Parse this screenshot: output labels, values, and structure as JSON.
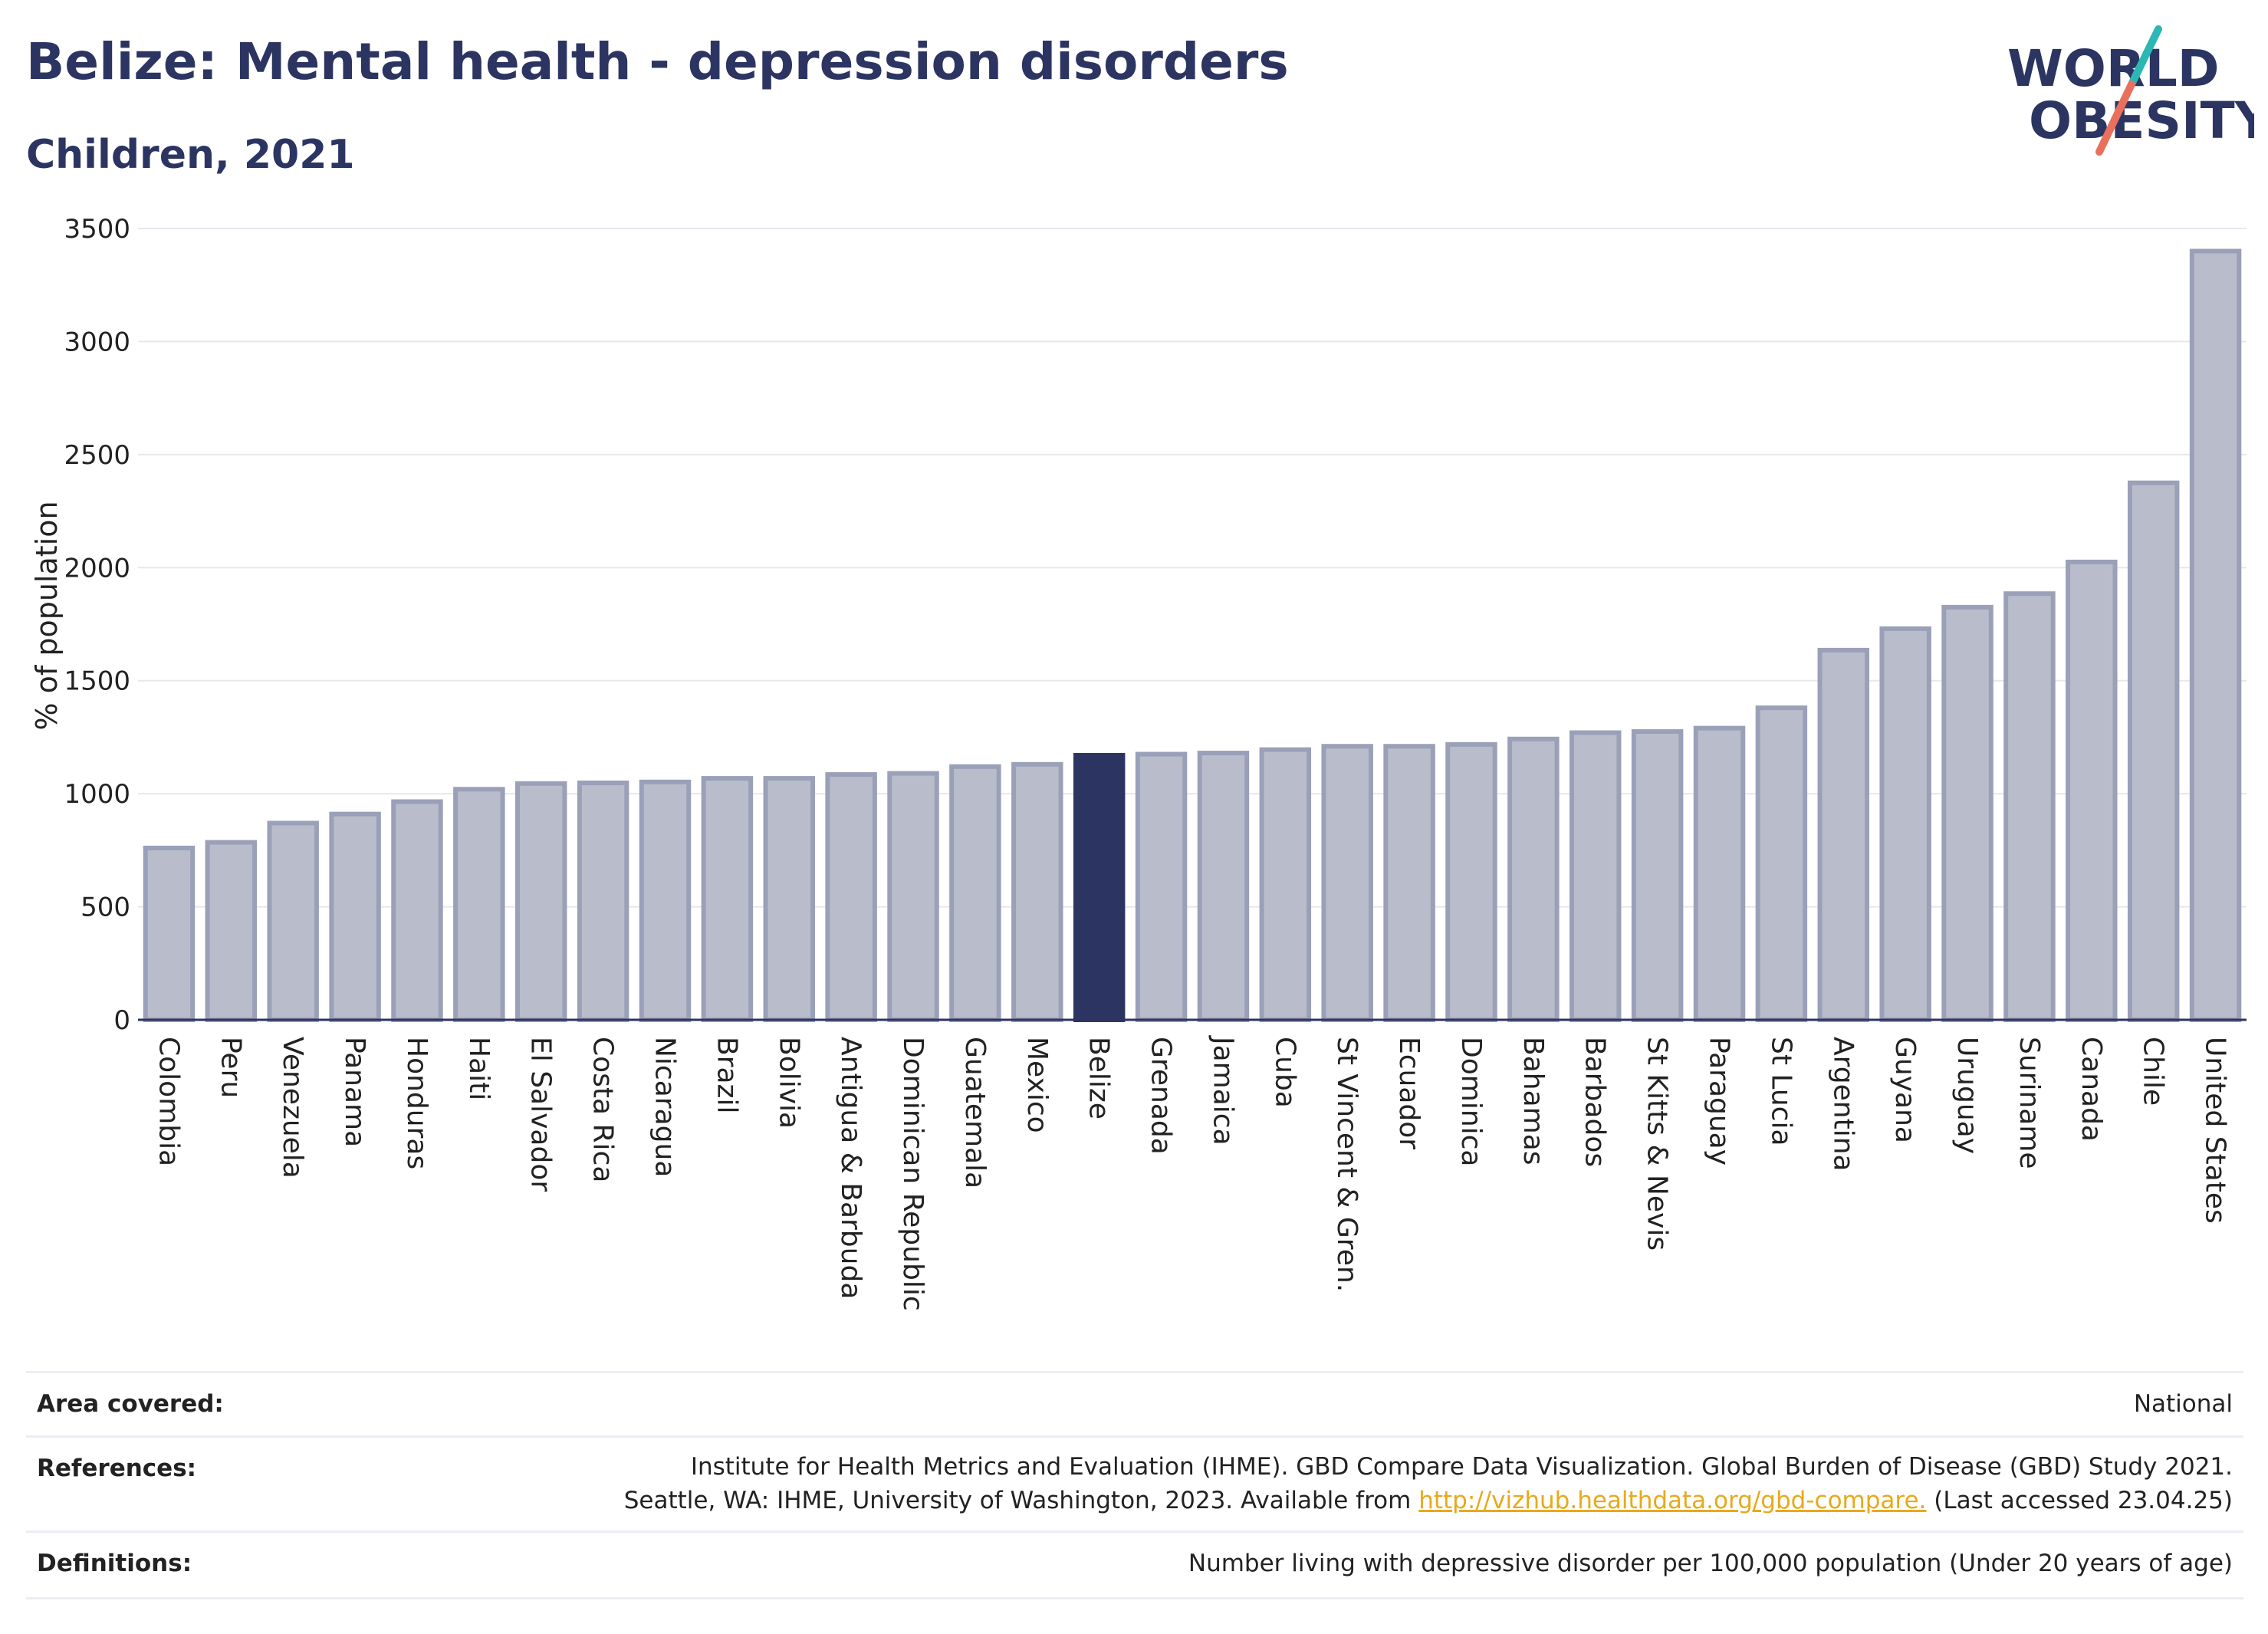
{
  "title": "Belize: Mental health - depression disorders",
  "subtitle": "Children, 2021",
  "logo": {
    "line1": "WORLD",
    "line2": "OBESITY"
  },
  "chart_data": {
    "type": "bar",
    "ylabel": "% of population",
    "ylim": [
      0,
      3500
    ],
    "yticks": [
      0,
      500,
      1000,
      1500,
      2000,
      2500,
      3000,
      3500
    ],
    "grid": true,
    "highlight": "Belize",
    "colors": {
      "bar": "#b9bdcb",
      "bar_border": "#9aa0b8",
      "highlight": "#2c3561"
    },
    "categories": [
      "Colombia",
      "Peru",
      "Venezuela",
      "Panama",
      "Honduras",
      "Haiti",
      "El Salvador",
      "Costa Rica",
      "Nicaragua",
      "Brazil",
      "Bolivia",
      "Antigua & Barbuda",
      "Dominican Republic",
      "Guatemala",
      "Mexico",
      "Belize",
      "Grenada",
      "Jamaica",
      "Cuba",
      "St Vincent & Gren.",
      "Ecuador",
      "Dominica",
      "Bahamas",
      "Barbados",
      "St Kitts & Nevis",
      "Paraguay",
      "St Lucia",
      "Argentina",
      "Guyana",
      "Uruguay",
      "Suriname",
      "Canada",
      "Chile",
      "United States"
    ],
    "values": [
      760,
      785,
      870,
      910,
      965,
      1020,
      1045,
      1048,
      1052,
      1068,
      1068,
      1085,
      1090,
      1120,
      1130,
      1170,
      1175,
      1180,
      1195,
      1210,
      1210,
      1218,
      1242,
      1270,
      1275,
      1290,
      1380,
      1635,
      1730,
      1825,
      1885,
      2025,
      2375,
      3400
    ]
  },
  "info": {
    "area_label": "Area covered:",
    "area_value": "National",
    "ref_label": "References:",
    "ref_line1": "Institute for Health Metrics and Evaluation (IHME). GBD Compare Data Visualization. Global Burden of Disease (GBD) Study 2021.",
    "ref_line2_pre": "Seattle, WA: IHME, University of Washington, 2023. Available from ",
    "ref_link": "http://vizhub.healthdata.org/gbd-compare.",
    "ref_line2_post": " (Last accessed 23.04.25)",
    "def_label": "Definitions:",
    "def_value": "Number living with depressive disorder per 100,000 population (Under 20 years of age)"
  }
}
